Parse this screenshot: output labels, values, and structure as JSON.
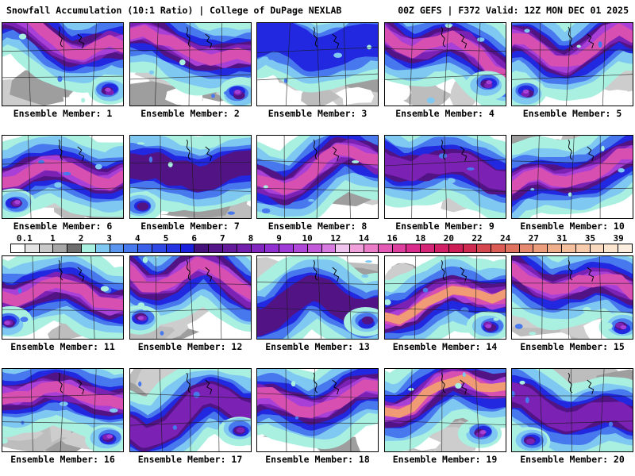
{
  "header": {
    "left": "Snowfall Accumulation (10:1 Ratio) | College of DuPage NEXLAB",
    "right": "00Z GEFS | F372 Valid: 12Z MON DEC 01 2025"
  },
  "panels": [
    {
      "label": "Ensemble Member: 1"
    },
    {
      "label": "Ensemble Member: 2"
    },
    {
      "label": "Ensemble Member: 3"
    },
    {
      "label": "Ensemble Member: 4"
    },
    {
      "label": "Ensemble Member: 5"
    },
    {
      "label": "Ensemble Member: 6"
    },
    {
      "label": "Ensemble Member: 7"
    },
    {
      "label": "Ensemble Member: 8"
    },
    {
      "label": "Ensemble Member: 9"
    },
    {
      "label": "Ensemble Member: 10"
    },
    {
      "label": "Ensemble Member: 11"
    },
    {
      "label": "Ensemble Member: 12"
    },
    {
      "label": "Ensemble Member: 13"
    },
    {
      "label": "Ensemble Member: 14"
    },
    {
      "label": "Ensemble Member: 15"
    },
    {
      "label": "Ensemble Member: 16"
    },
    {
      "label": "Ensemble Member: 17"
    },
    {
      "label": "Ensemble Member: 18"
    },
    {
      "label": "Ensemble Member: 19"
    },
    {
      "label": "Ensemble Member: 20"
    }
  ],
  "colorbar": {
    "tick_labels": [
      "0.1",
      "1",
      "2",
      "3",
      "4",
      "5",
      "6",
      "7",
      "8",
      "9",
      "10",
      "12",
      "14",
      "16",
      "18",
      "20",
      "22",
      "24",
      "27",
      "31",
      "35",
      "39"
    ],
    "segment_colors": [
      "#ffffff",
      "#e4e4e4",
      "#c9c9c9",
      "#a7a7a7",
      "#6e6e6e",
      "#a9f0e1",
      "#7fc8f2",
      "#5a96f0",
      "#4878ee",
      "#3b5fe8",
      "#2f48e4",
      "#2334e0",
      "#1a20dc",
      "#45117b",
      "#541589",
      "#631a9b",
      "#721fad",
      "#8126bf",
      "#9030d0",
      "#a03bd8",
      "#b048da",
      "#c259d8",
      "#d77be0",
      "#f0c3ee",
      "#ef9fd9",
      "#ea7cc8",
      "#e35bb4",
      "#dd3f9f",
      "#d82b8b",
      "#d42577",
      "#d12065",
      "#ce1e57",
      "#cf2b50",
      "#d5474f",
      "#da5c55",
      "#e07360",
      "#e58a70",
      "#eb9d7c",
      "#efae8b",
      "#f3bf9c",
      "#f6ccac",
      "#f9dabf",
      "#fbe5cf",
      "#fdefdf"
    ]
  },
  "palette": {
    "background": "#ffffff",
    "text": "#000000",
    "map_ramp": [
      "#a9f0e1",
      "#7fc8f2",
      "#4878ee",
      "#2128e0",
      "#521384",
      "#7b21b4",
      "#a83fd6",
      "#d84fb2",
      "#f09a76"
    ],
    "map_grays": [
      "#cdcdcd",
      "#bdbdbd",
      "#9e9e9e"
    ],
    "map_line": "#1a1a1a"
  },
  "chart_data": {
    "type": "heatmap",
    "title": "Snowfall Accumulation (10:1 Ratio)",
    "source": "College of DuPage NEXLAB",
    "model": "00Z GEFS",
    "forecast_hour": "F372",
    "valid_time": "12Z MON DEC 01 2025",
    "layout": "4x5 grid of ensemble postage-stamp maps with shared horizontal colorbar",
    "members": 20,
    "scale_values": [
      0.1,
      1,
      2,
      3,
      4,
      5,
      6,
      7,
      8,
      9,
      10,
      12,
      14,
      16,
      18,
      20,
      22,
      24,
      27,
      31,
      35,
      39
    ]
  }
}
